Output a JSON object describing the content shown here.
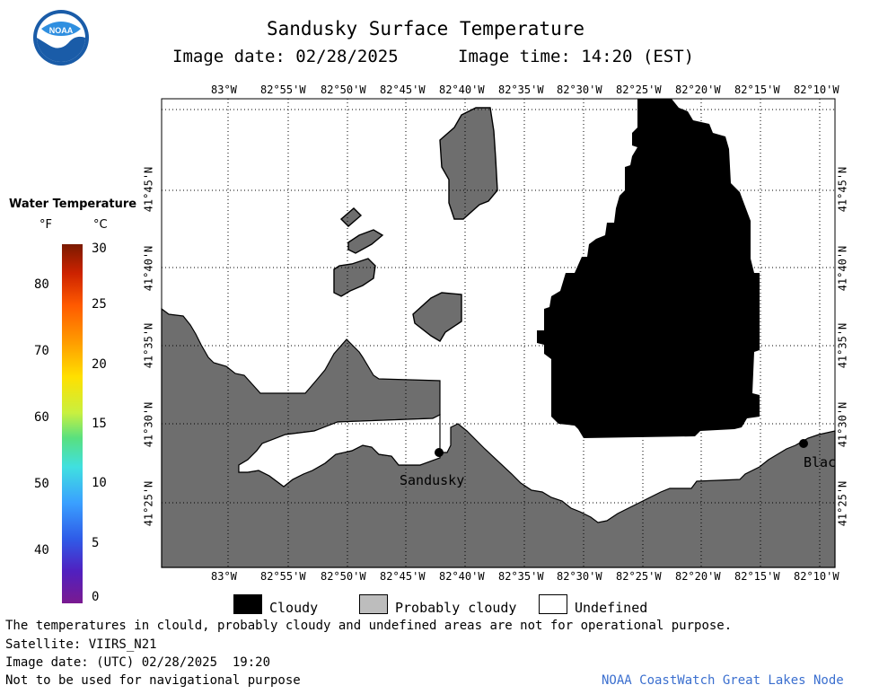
{
  "header": {
    "title": "Sandusky Surface Temperature",
    "image_date": "Image date: 02/28/2025",
    "image_time": "Image time: 14:20 (EST)"
  },
  "logo": {
    "text": "NOAA",
    "icon": "noaa-logo"
  },
  "colorbar": {
    "title": "Water Temperature",
    "unit_f": "°F",
    "unit_c": "°C",
    "f_ticks": [
      "80",
      "70",
      "60",
      "50",
      "40"
    ],
    "c_ticks": [
      "30",
      "25",
      "20",
      "15",
      "10",
      "5",
      "0"
    ]
  },
  "map": {
    "top_lon_labels": [
      "83°W",
      "82°55'W",
      "82°50'W",
      "82°45'W",
      "82°40'W",
      "82°35'W",
      "82°30'W",
      "82°25'W",
      "82°20'W",
      "82°15'W",
      "82°10'W"
    ],
    "bottom_lon_labels": [
      "83°W",
      "82°55'W",
      "82°50'W",
      "82°45'W",
      "82°40'W",
      "82°35'W",
      "82°30'W",
      "82°25'W",
      "82°20'W",
      "82°15'W",
      "82°10'W"
    ],
    "lat_labels": [
      "41°45'N",
      "41°40'N",
      "41°35'N",
      "41°30'N",
      "41°25'N"
    ],
    "cities": [
      "Sandusky",
      "Blac"
    ]
  },
  "legend": {
    "cloudy": "Cloudy",
    "probably_cloudy": "Probably cloudy",
    "undefined": "Undefined"
  },
  "footer": {
    "disclaimer": "The temperatures in clould, probably cloudy and undefined areas are not for operational purpose.",
    "satellite": "Satellite: VIIRS_N21",
    "utc_date": "Image date: (UTC) 02/28/2025  19:20",
    "nav_warning": "Not to be used for navigational purpose",
    "credit": "NOAA CoastWatch Great Lakes Node"
  },
  "colors": {
    "land": "#6e6e6e",
    "cloud": "#000000",
    "water": "#ffffff",
    "probably_cloudy": "#bdbdbd"
  }
}
